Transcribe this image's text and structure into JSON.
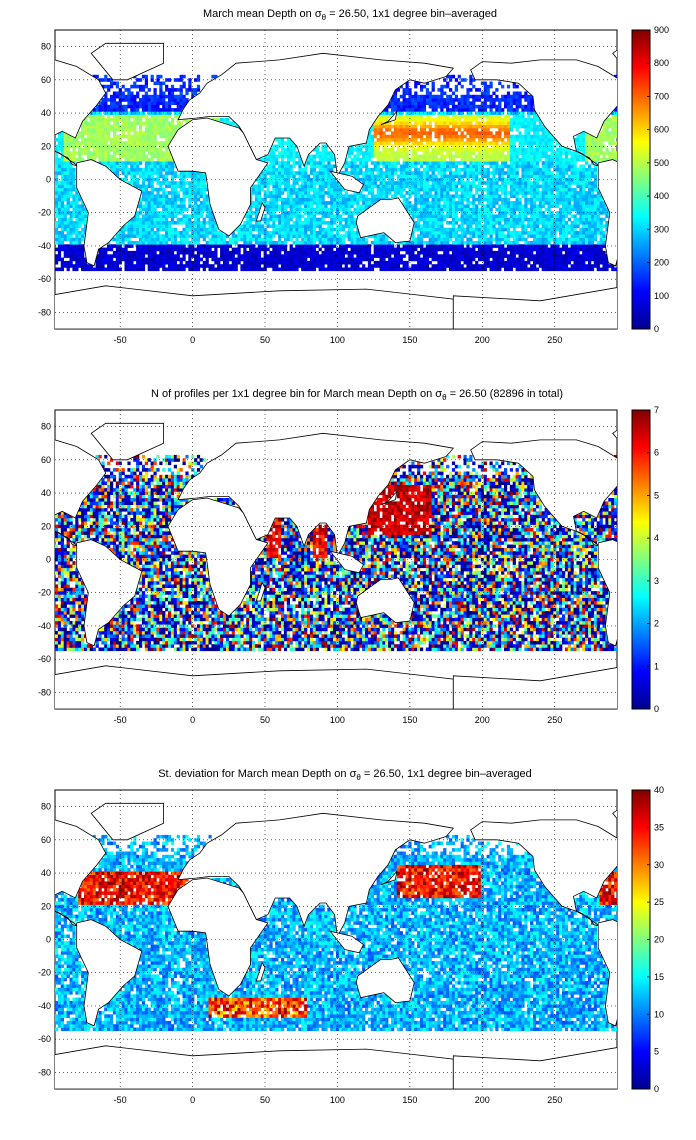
{
  "chart_data": [
    {
      "type": "heatmap",
      "title": {
        "prefix": "March mean Depth on ",
        "sigma": "σ",
        "sub": "θ",
        "suffix": " = 26.50, 1x1 degree bin–averaged"
      },
      "xlim": [
        -95,
        293
      ],
      "ylim": [
        -90,
        90
      ],
      "xticks": [
        -50,
        0,
        50,
        100,
        150,
        200,
        250
      ],
      "yticks": [
        -80,
        -60,
        -40,
        -20,
        0,
        20,
        40,
        60,
        80
      ],
      "grid": true,
      "colorbar": {
        "min": 0,
        "max": 900,
        "ticks": [
          0,
          100,
          200,
          300,
          400,
          500,
          600,
          700,
          800,
          900
        ],
        "colormap": "jet"
      },
      "field": "mean"
    },
    {
      "type": "heatmap",
      "title": {
        "prefix": "N of profiles per 1x1 degree bin for March mean Depth on ",
        "sigma": "σ",
        "sub": "θ",
        "suffix": " = 26.50 (82896 in total)"
      },
      "xlim": [
        -95,
        293
      ],
      "ylim": [
        -90,
        90
      ],
      "xticks": [
        -50,
        0,
        50,
        100,
        150,
        200,
        250
      ],
      "yticks": [
        -80,
        -60,
        -40,
        -20,
        0,
        20,
        40,
        60,
        80
      ],
      "grid": true,
      "colorbar": {
        "min": 0,
        "max": 7,
        "ticks": [
          0,
          1,
          2,
          3,
          4,
          5,
          6,
          7
        ],
        "colormap": "jet"
      },
      "field": "count"
    },
    {
      "type": "heatmap",
      "title": {
        "prefix": "St. deviation for March mean Depth on ",
        "sigma": "σ",
        "sub": "θ",
        "suffix": " = 26.50, 1x1 degree bin–averaged"
      },
      "xlim": [
        -95,
        293
      ],
      "ylim": [
        -90,
        90
      ],
      "xticks": [
        -50,
        0,
        50,
        100,
        150,
        200,
        250
      ],
      "yticks": [
        -80,
        -60,
        -40,
        -20,
        0,
        20,
        40,
        60,
        80
      ],
      "grid": true,
      "colorbar": {
        "min": 0,
        "max": 40,
        "ticks": [
          0,
          5,
          10,
          15,
          20,
          25,
          30,
          35,
          40
        ],
        "colormap": "jet"
      },
      "field": "std"
    }
  ]
}
